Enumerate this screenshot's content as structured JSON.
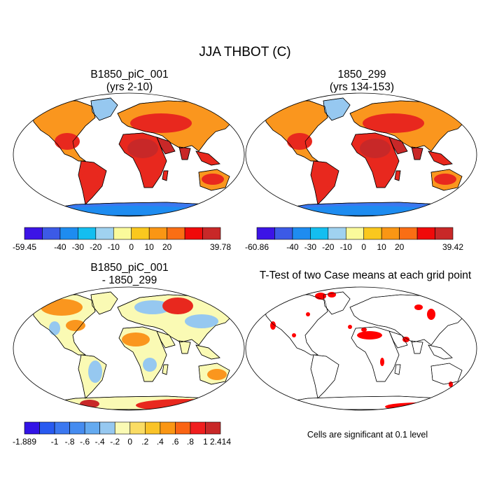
{
  "figure": {
    "title": "JJA THBOT (C)"
  },
  "panels": [
    {
      "line1": "B1850_piC_001",
      "line2": "(yrs 2-10)",
      "field": "absolute"
    },
    {
      "line1": "1850_299",
      "line2": "(yrs 134-153)",
      "field": "absolute"
    },
    {
      "line1": "B1850_piC_001",
      "line2": "- 1850_299",
      "field": "difference"
    },
    {
      "line1": "T-Test of two Case means at each grid point",
      "line2": "",
      "field": "significance"
    }
  ],
  "colorbars": [
    {
      "colors": [
        "#3c14e6",
        "#3c5ae6",
        "#1e8cf0",
        "#14bef0",
        "#a0d2f0",
        "#fafa9b",
        "#fac81e",
        "#fa9614",
        "#fa6e14",
        "#f00a0a",
        "#c82828"
      ],
      "labels": [
        "-59.45",
        "-40",
        "-30",
        "-20",
        "-10",
        "0",
        "10",
        "20",
        "39.78"
      ]
    },
    {
      "colors": [
        "#3c14e6",
        "#3c5ae6",
        "#1e8cf0",
        "#14bef0",
        "#a0d2f0",
        "#fafa9b",
        "#fac81e",
        "#fa9614",
        "#fa6e14",
        "#f00a0a",
        "#c82828"
      ],
      "labels": [
        "-60.86",
        "-40",
        "-30",
        "-20",
        "-10",
        "0",
        "10",
        "20",
        "39.42"
      ]
    },
    {
      "colors": [
        "#3214e6",
        "#285af0",
        "#3c78f0",
        "#468cf0",
        "#64aaf0",
        "#96c8f0",
        "#fafab4",
        "#fadc64",
        "#fac328",
        "#fa9614",
        "#fa6414",
        "#f01e1e",
        "#c82828"
      ],
      "labels": [
        "-1.889",
        "-1",
        "-.8",
        "-.6",
        "-.4",
        "-.2",
        "0",
        ".2",
        ".4",
        ".6",
        ".8",
        "1",
        "2.414"
      ]
    }
  ],
  "note": "Cells are significant at 0.1 level",
  "palette": {
    "hot": "#e8281e",
    "deep_red": "#c82828",
    "orange": "#fa961e",
    "cold_blue": "#3c78f0",
    "ice": "#1e8cf0",
    "pale_yellow": "#fafab4",
    "light_blue": "#96c8f0",
    "signif_red": "#ff0000"
  }
}
